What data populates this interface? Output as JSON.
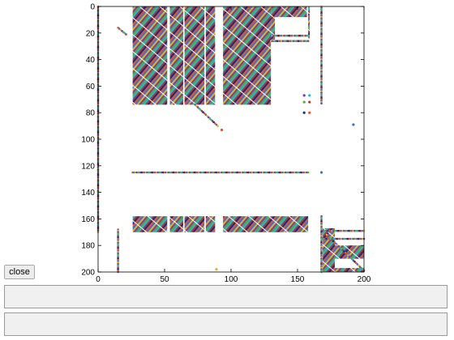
{
  "window": {
    "close_label": "close",
    "panels": [
      {
        "text": ""
      },
      {
        "text": ""
      }
    ]
  },
  "chart_data": {
    "type": "scatter",
    "title": "",
    "xlabel": "",
    "ylabel": "",
    "xlim": [
      0,
      200
    ],
    "ylim": [
      0,
      200
    ],
    "y_reversed": true,
    "x_ticks": [
      0,
      50,
      100,
      150,
      200
    ],
    "y_ticks": [
      0,
      20,
      40,
      60,
      80,
      100,
      120,
      140,
      160,
      180,
      200
    ],
    "grid": false,
    "legend": "none",
    "marker_palette": [
      "#e8542a",
      "#3d6fd6",
      "#e2b21e",
      "#7b3da8",
      "#53a83b",
      "#2bb3d6",
      "#b03a2e",
      "#0f2e8a"
    ],
    "blocks": [
      {
        "x": [
          26,
          52
        ],
        "y": [
          0,
          74
        ]
      },
      {
        "x": [
          54,
          64
        ],
        "y": [
          0,
          74
        ]
      },
      {
        "x": [
          65,
          80
        ],
        "y": [
          0,
          74
        ]
      },
      {
        "x": [
          81,
          88
        ],
        "y": [
          0,
          74
        ]
      },
      {
        "x": [
          94,
          130
        ],
        "y": [
          0,
          74
        ]
      },
      {
        "x": [
          130,
          157
        ],
        "y": [
          0,
          8
        ]
      },
      {
        "x": [
          130,
          133
        ],
        "y": [
          8,
          25
        ]
      },
      {
        "x": [
          158,
          159
        ],
        "y": [
          0,
          24
        ]
      },
      {
        "x": [
          26,
          52
        ],
        "y": [
          158,
          170
        ]
      },
      {
        "x": [
          54,
          64
        ],
        "y": [
          158,
          170
        ]
      },
      {
        "x": [
          65,
          80
        ],
        "y": [
          158,
          170
        ]
      },
      {
        "x": [
          81,
          88
        ],
        "y": [
          158,
          170
        ]
      },
      {
        "x": [
          94,
          158
        ],
        "y": [
          158,
          170
        ]
      },
      {
        "x": [
          169,
          178
        ],
        "y": [
          167,
          200
        ]
      },
      {
        "x": [
          178,
          200
        ],
        "y": [
          180,
          190
        ]
      },
      {
        "x": [
          178,
          200
        ],
        "y": [
          197,
          200
        ]
      }
    ],
    "rows": [
      {
        "y": 125,
        "x_start": 26,
        "x_end": 158
      },
      {
        "y": 22,
        "x_start": 130,
        "x_end": 158
      },
      {
        "y": 26,
        "x_start": 130,
        "x_end": 158
      },
      {
        "y": 169,
        "x_start": 169,
        "x_end": 200
      },
      {
        "y": 175,
        "x_start": 169,
        "x_end": 200
      }
    ],
    "columns": [
      {
        "x": 0,
        "y_start": 0,
        "y_end": 170
      },
      {
        "x": 15,
        "y_start": 168,
        "y_end": 200
      },
      {
        "x": 168,
        "y_start": 0,
        "y_end": 73
      },
      {
        "x": 168,
        "y_start": 158,
        "y_end": 200
      }
    ],
    "diagonals": [
      {
        "x": [
          15,
          21
        ],
        "y": [
          16,
          21
        ]
      },
      {
        "x": [
          73,
          90
        ],
        "y": [
          74,
          90
        ]
      },
      {
        "x": [
          172,
          200
        ],
        "y": [
          172,
          199
        ]
      }
    ],
    "points": [
      {
        "x": 93,
        "y": 93
      },
      {
        "x": 192,
        "y": 89
      },
      {
        "x": 89,
        "y": 198
      },
      {
        "x": 155,
        "y": 67
      },
      {
        "x": 155,
        "y": 72
      },
      {
        "x": 159,
        "y": 67
      },
      {
        "x": 159,
        "y": 72
      },
      {
        "x": 155,
        "y": 80
      },
      {
        "x": 159,
        "y": 80
      },
      {
        "x": 168,
        "y": 125
      }
    ]
  }
}
